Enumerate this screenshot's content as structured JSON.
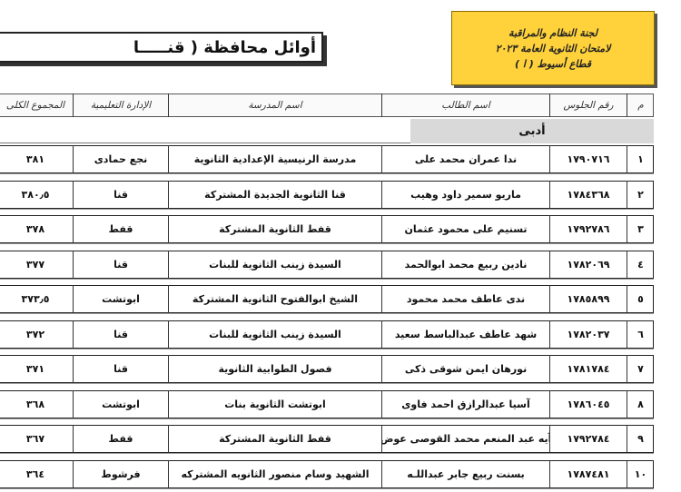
{
  "header": {
    "committee": [
      "لجنة النظام والمراقبة",
      "لامتحان الثانوية العامة ٢٠٢٣",
      "قطاع أسيوط ( ا )"
    ],
    "title": "أوائل محافظة ( قنـــــا"
  },
  "table": {
    "columns": [
      "م",
      "رقم الجلوس",
      "اسم الطالب",
      "اسم المدرسة",
      "الإدارة التعليمية",
      "المجموع الكلى"
    ],
    "section": "أدبى",
    "rows": [
      [
        "١",
        "١٧٩٠٧١٦",
        "ندا عمران محمد على",
        "مدرسة الرنيسية الإعدادية الثانوية",
        "نجع حمادى",
        "٣٨١"
      ],
      [
        "٢",
        "١٧٨٤٣٦٨",
        "ماريو سمير داود وهيب",
        "قنا الثانوية الجديدة المشتركة",
        "قنا",
        "٣٨٠٫٥"
      ],
      [
        "٣",
        "١٧٩٢٧٨٦",
        "تسنيم على محمود عثمان",
        "قفط الثانوية المشتركة",
        "قفط",
        "٣٧٨"
      ],
      [
        "٤",
        "١٧٨٢٠٦٩",
        "نادين ربيع محمد ابوالحمد",
        "السيدة زينب الثانوية للبنات",
        "قنا",
        "٣٧٧"
      ],
      [
        "٥",
        "١٧٨٥٨٩٩",
        "ندى عاطف محمد محمود",
        "الشيخ ابوالفتوح الثانوية المشتركة",
        "ابوتشت",
        "٣٧٣٫٥"
      ],
      [
        "٦",
        "١٧٨٢٠٣٧",
        "شهد عاطف عبدالباسط سعيد",
        "السيدة زينب الثانوية للبنات",
        "قنا",
        "٣٧٢"
      ],
      [
        "٧",
        "١٧٨١٧٨٤",
        "نورهان ايمن شوقى ذكى",
        "فصول الطوابية الثانوية",
        "قنا",
        "٣٧١"
      ],
      [
        "٨",
        "١٧٨٦٠٤٥",
        "آسيا عبدالرازق احمد فاوى",
        "ابوتشت الثانوية بنات",
        "ابوتشت",
        "٣٦٨"
      ],
      [
        "٩",
        "١٧٩٢٧٨٤",
        "آيه عبد المنعم محمد القوصى عوض",
        "قفط الثانوية المشتركة",
        "قفط",
        "٣٦٧"
      ],
      [
        "١٠",
        "١٧٨٧٤٨١",
        "بسنت ربيع جابر عبداللـه",
        "الشهيد وسام منصور الثانويه المشتركه",
        "فرشوط",
        "٣٦٤"
      ]
    ]
  }
}
